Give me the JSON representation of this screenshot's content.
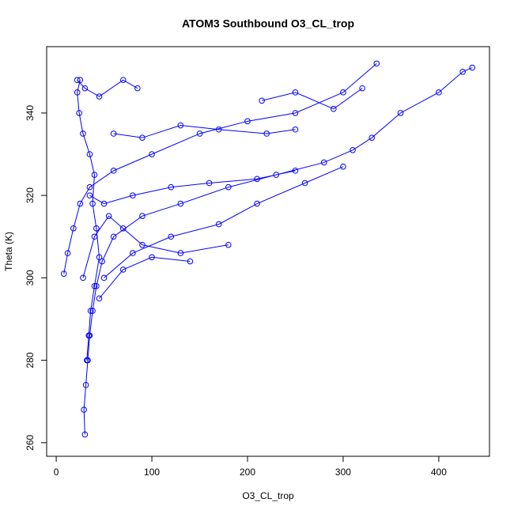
{
  "chart_data": {
    "type": "line",
    "title": "ATOM3 Southbound O3_CL_trop",
    "x_label": "O3_CL_trop",
    "y_label": "Theta (K)",
    "xlim": [
      -10,
      453
    ],
    "ylim": [
      256.7,
      356.1
    ],
    "xticks": [
      0,
      100,
      200,
      300,
      400
    ],
    "yticks": [
      260,
      280,
      300,
      320,
      340
    ],
    "markers": true,
    "series": [
      {
        "color": "#0000ff",
        "x": [
          30,
          29,
          31,
          33,
          35,
          38,
          42,
          48,
          60,
          90,
          130,
          180,
          230,
          280,
          310,
          330,
          360,
          400,
          425,
          435,
          null,
          25,
          22,
          24,
          28,
          35,
          40,
          38,
          42,
          45,
          40,
          36,
          34,
          32,
          null,
          8,
          12,
          18,
          25,
          35,
          60,
          100,
          150,
          200,
          250,
          300,
          335,
          null,
          50,
          80,
          120,
          170,
          210,
          260,
          300,
          null,
          45,
          70,
          100,
          140,
          null,
          60,
          90,
          130,
          170,
          220,
          250,
          null,
          22,
          30,
          45,
          70,
          85,
          null,
          215,
          250,
          290,
          320,
          null,
          35,
          50,
          80,
          120,
          160,
          210,
          250,
          null,
          28,
          40,
          55,
          70,
          90,
          130,
          180
        ],
        "values": [
          262,
          268,
          274,
          280,
          286,
          292,
          298,
          304,
          310,
          315,
          318,
          322,
          325,
          328,
          331,
          334,
          340,
          345,
          350,
          351,
          null,
          348,
          345,
          340,
          335,
          330,
          325,
          318,
          312,
          305,
          298,
          292,
          286,
          280,
          null,
          301,
          306,
          312,
          318,
          322,
          326,
          330,
          335,
          338,
          340,
          345,
          352,
          null,
          300,
          306,
          310,
          313,
          318,
          323,
          327,
          null,
          295,
          302,
          305,
          304,
          null,
          335,
          334,
          337,
          336,
          335,
          336,
          null,
          348,
          346,
          344,
          348,
          346,
          null,
          343,
          345,
          341,
          346,
          null,
          320,
          318,
          320,
          322,
          323,
          324,
          326,
          null,
          300,
          310,
          315,
          312,
          308,
          306,
          308
        ]
      }
    ]
  }
}
